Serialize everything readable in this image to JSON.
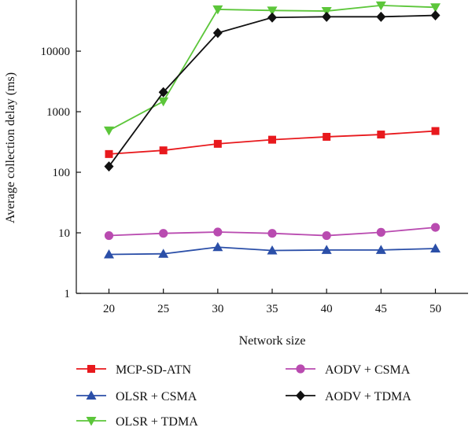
{
  "chart_data": {
    "type": "line",
    "title": "",
    "xlabel": "Network size",
    "ylabel": "Average collection delay (ms)",
    "x": [
      20,
      25,
      30,
      35,
      40,
      45,
      50
    ],
    "xlim": [
      17,
      53
    ],
    "ylim": [
      1,
      70000
    ],
    "yscale": "log",
    "y_ticks": [
      1,
      10,
      100,
      1000,
      10000
    ],
    "y_tick_labels": [
      "1",
      "10",
      "100",
      "1000",
      "10000"
    ],
    "x_ticks": [
      20,
      25,
      30,
      35,
      40,
      45,
      50
    ],
    "x_tick_labels": [
      "20",
      "25",
      "30",
      "35",
      "40",
      "45",
      "50"
    ],
    "grid": false,
    "legend_position": "bottom",
    "series": [
      {
        "name": "MCP-SD-ATN",
        "color": "#e8191d",
        "marker": "square",
        "values": [
          200,
          230,
          295,
          345,
          385,
          420,
          480
        ]
      },
      {
        "name": "OLSR + CSMA",
        "color": "#2b4fa8",
        "marker": "triangle-up",
        "values": [
          4.4,
          4.5,
          5.8,
          5.1,
          5.2,
          5.2,
          5.5
        ]
      },
      {
        "name": "OLSR + TDMA",
        "color": "#5cc63a",
        "marker": "triangle-down",
        "values": [
          490,
          1480,
          49000,
          47000,
          46000,
          57000,
          53000
        ]
      },
      {
        "name": "AODV + CSMA",
        "color": "#b94bb0",
        "marker": "circle",
        "values": [
          9.0,
          9.8,
          10.3,
          9.8,
          9.0,
          10.2,
          12.3
        ]
      },
      {
        "name": "AODV + TDMA",
        "color": "#111111",
        "marker": "diamond",
        "values": [
          125,
          2100,
          20000,
          36000,
          37000,
          37000,
          39000
        ]
      }
    ]
  }
}
